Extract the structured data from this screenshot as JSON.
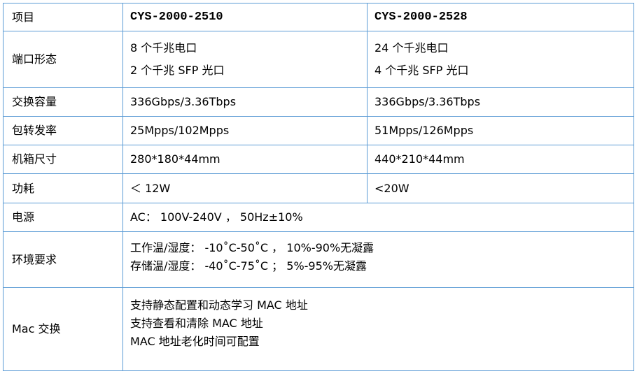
{
  "header": {
    "item": "项目",
    "model_a": "CYS-2000-2510",
    "model_b": "CYS-2000-2528"
  },
  "rows": {
    "ports": {
      "label": "端口形态",
      "a": [
        "8 个千兆电口",
        "2 个千兆 SFP 光口"
      ],
      "b": [
        "24 个千兆电口",
        "4 个千兆 SFP 光口"
      ]
    },
    "capacity": {
      "label": "交换容量",
      "a": "336Gbps/3.36Tbps",
      "b": "336Gbps/3.36Tbps"
    },
    "forwarding": {
      "label": "包转发率",
      "a": "25Mpps/102Mpps",
      "b": "51Mpps/126Mpps"
    },
    "size": {
      "label": "机箱尺寸",
      "a": "280*180*44mm",
      "b": "440*210*44mm"
    },
    "power": {
      "label": "功耗",
      "a": "＜ 12W",
      "b": "<20W"
    },
    "supply": {
      "label": "电源",
      "value": "AC： 100V-240V ， 50Hz±10%"
    },
    "environment": {
      "label": "环境要求",
      "lines": [
        "工作温/湿度： -10˚C-50˚C ，  10%-90%无凝露",
        "存储温/湿度： -40˚C-75˚C ；  5%-95%无凝露"
      ]
    },
    "mac": {
      "label": "Mac 交换",
      "lines": [
        "支持静态配置和动态学习 MAC 地址",
        "支持查看和清除 MAC 地址",
        "MAC 地址老化时间可配置"
      ]
    }
  },
  "colors": {
    "border": "#5b9bd5"
  }
}
